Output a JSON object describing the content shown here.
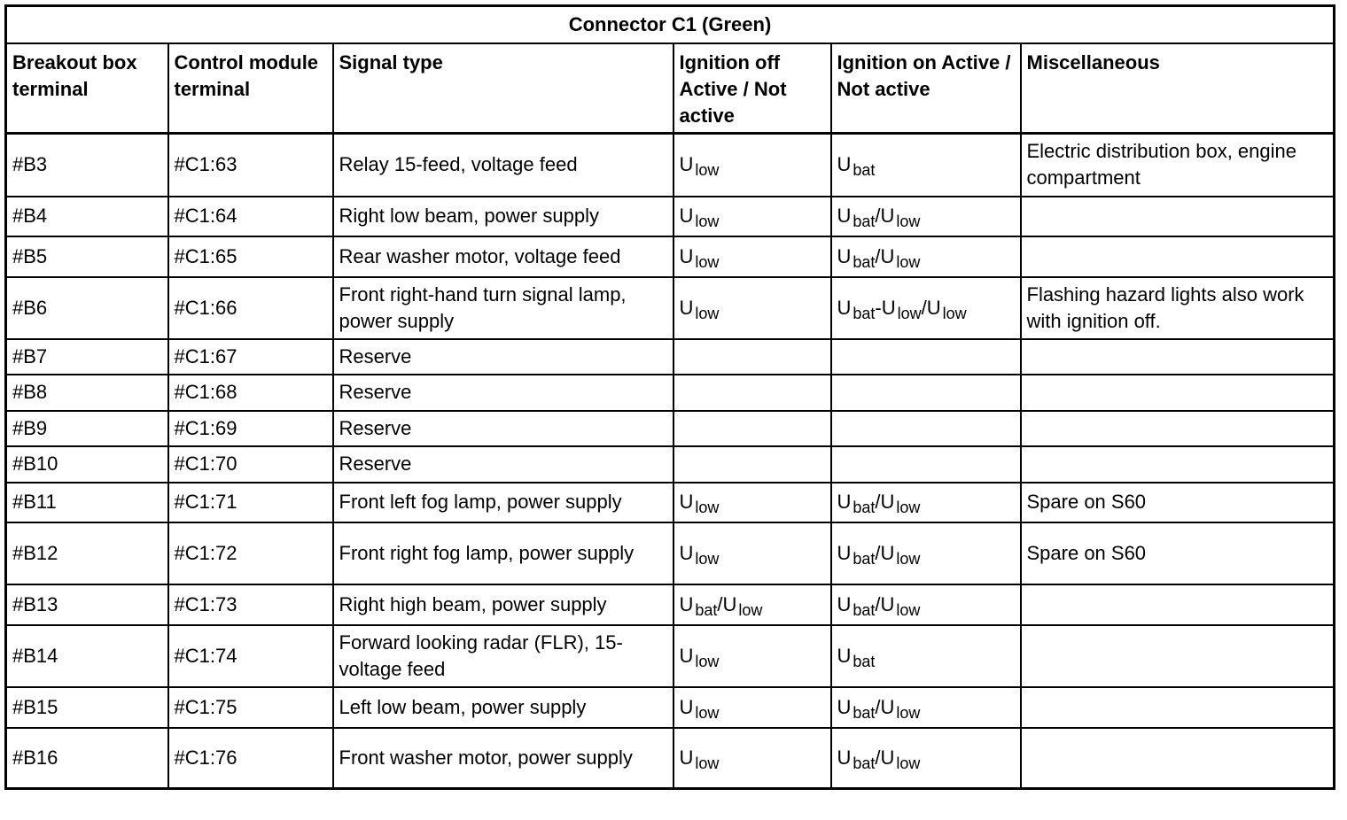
{
  "title": "Connector C1 (Green)",
  "headers": [
    "Breakout box terminal",
    "Control module terminal",
    "Signal type",
    "Ignition off Active / Not active",
    "Ignition on Active / Not active",
    "Miscellaneous"
  ],
  "rows": [
    {
      "bob": "#B3",
      "cm": "#C1:63",
      "signal": "Relay 15-feed, voltage feed",
      "off": [
        [
          "U",
          "low"
        ]
      ],
      "on": [
        [
          "U",
          "bat"
        ]
      ],
      "misc": "Electric distribution box, engine compartment",
      "h": 73
    },
    {
      "bob": "#B4",
      "cm": "#C1:64",
      "signal": "Right low beam, power supply",
      "off": [
        [
          "U",
          "low"
        ]
      ],
      "on": [
        [
          "U",
          "bat"
        ],
        [
          "/U",
          "low"
        ]
      ],
      "misc": "",
      "h": 47
    },
    {
      "bob": "#B5",
      "cm": "#C1:65",
      "signal": "Rear washer motor, voltage feed",
      "off": [
        [
          "U",
          "low"
        ]
      ],
      "on": [
        [
          "U",
          "bat"
        ],
        [
          "/U",
          "low"
        ]
      ],
      "misc": "",
      "h": 48
    },
    {
      "bob": "#B6",
      "cm": "#C1:66",
      "signal": "Front right-hand turn signal lamp, power supply",
      "off": [
        [
          "U",
          "low"
        ]
      ],
      "on": [
        [
          "U",
          "bat"
        ],
        [
          "-U",
          "low"
        ],
        [
          "/U",
          "low"
        ]
      ],
      "misc": "Flashing hazard lights also work with ignition off.",
      "h": 72
    },
    {
      "bob": "#B7",
      "cm": "#C1:67",
      "signal": "Reserve",
      "off": [],
      "on": [],
      "misc": "",
      "h": 42
    },
    {
      "bob": "#B8",
      "cm": "#C1:68",
      "signal": "Reserve",
      "off": [],
      "on": [],
      "misc": "",
      "h": 43
    },
    {
      "bob": "#B9",
      "cm": "#C1:69",
      "signal": "Reserve",
      "off": [],
      "on": [],
      "misc": "",
      "h": 42
    },
    {
      "bob": "#B10",
      "cm": "#C1:70",
      "signal": "Reserve",
      "off": [],
      "on": [],
      "misc": "",
      "h": 43
    },
    {
      "bob": "#B11",
      "cm": "#C1:71",
      "signal": "Front left fog lamp, power supply",
      "off": [
        [
          "U",
          "low"
        ]
      ],
      "on": [
        [
          "U",
          "bat"
        ],
        [
          "/U",
          "low"
        ]
      ],
      "misc": "Spare on S60",
      "h": 47
    },
    {
      "bob": "#B12",
      "cm": "#C1:72",
      "signal": "Front right fog lamp, power supply",
      "off": [
        [
          "U",
          "low"
        ]
      ],
      "on": [
        [
          "U",
          "bat"
        ],
        [
          "/U",
          "low"
        ]
      ],
      "misc": "Spare on S60",
      "h": 72
    },
    {
      "bob": "#B13",
      "cm": "#C1:73",
      "signal": "Right high beam, power supply",
      "off": [
        [
          "U",
          "bat"
        ],
        [
          "/U",
          "low"
        ]
      ],
      "on": [
        [
          "U",
          "bat"
        ],
        [
          "/U",
          "low"
        ]
      ],
      "misc": "",
      "h": 48
    },
    {
      "bob": "#B14",
      "cm": "#C1:74",
      "signal": "Forward looking radar (FLR), 15-voltage feed",
      "off": [
        [
          "U",
          "low"
        ]
      ],
      "on": [
        [
          "U",
          "bat"
        ]
      ],
      "misc": "",
      "h": 72
    },
    {
      "bob": "#B15",
      "cm": "#C1:75",
      "signal": "Left low beam, power supply",
      "off": [
        [
          "U",
          "low"
        ]
      ],
      "on": [
        [
          "U",
          "bat"
        ],
        [
          "/U",
          "low"
        ]
      ],
      "misc": "",
      "h": 48
    },
    {
      "bob": "#B16",
      "cm": "#C1:76",
      "signal": "Front washer motor, power supply",
      "off": [
        [
          "U",
          "low"
        ]
      ],
      "on": [
        [
          "U",
          "bat"
        ],
        [
          "/U",
          "low"
        ]
      ],
      "misc": "",
      "h": 71
    }
  ]
}
